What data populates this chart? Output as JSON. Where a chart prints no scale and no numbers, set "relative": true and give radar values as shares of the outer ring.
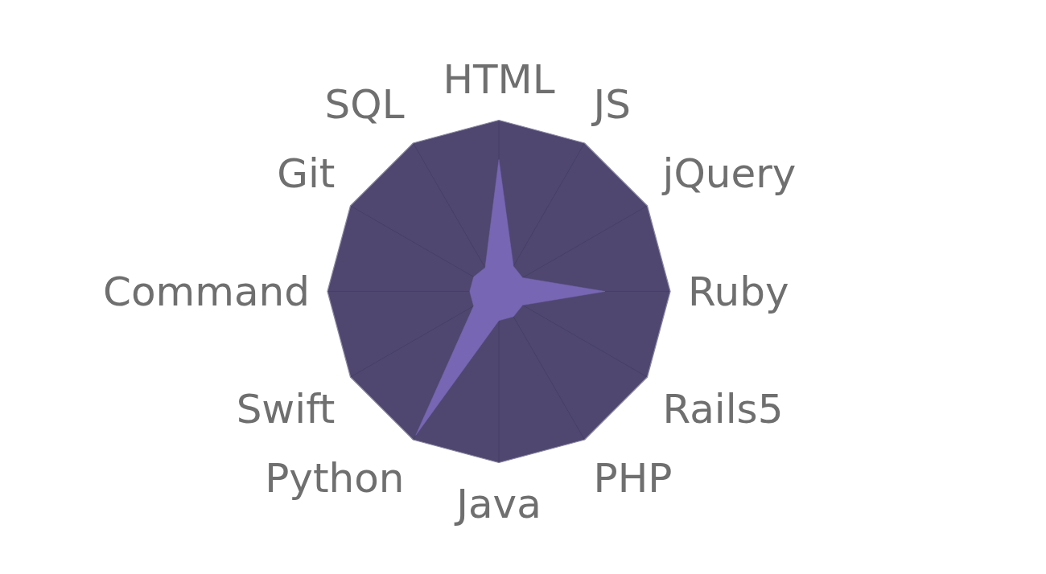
{
  "chart_data": {
    "type": "radar",
    "relative": true,
    "grid": true,
    "categories": [
      "HTML",
      "JS",
      "jQuery",
      "Ruby",
      "Rails5",
      "PHP",
      "Java",
      "Python",
      "Swift",
      "Command",
      "Git",
      "SQL"
    ],
    "series": [
      {
        "color": "#7766b3",
        "values": [
          0.77,
          0.17,
          0.16,
          0.62,
          0.16,
          0.17,
          0.17,
          0.97,
          0.17,
          0.17,
          0.17,
          0.16
        ]
      }
    ]
  }
}
